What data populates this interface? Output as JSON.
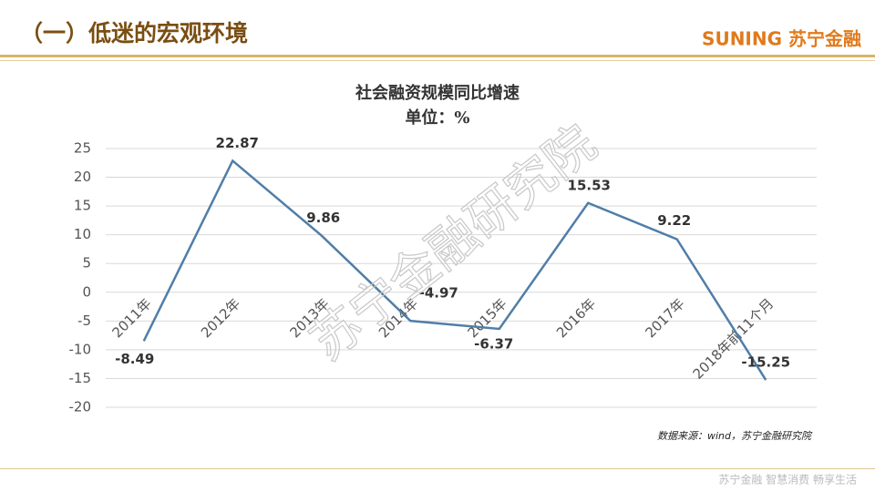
{
  "header": {
    "title": "（一）低迷的宏观环境",
    "logo": "SUNING 苏宁金融"
  },
  "chart_data": {
    "type": "line",
    "title": "社会融资规模同比增速",
    "subtitle": "单位：%",
    "categories": [
      "2011年",
      "2012年",
      "2013年",
      "2014年",
      "2015年",
      "2016年",
      "2017年",
      "2018年前11个月"
    ],
    "series": [
      {
        "name": "社会融资规模同比增速",
        "color": "#4f7ea8",
        "values": [
          -8.49,
          22.87,
          9.86,
          -4.97,
          -6.37,
          15.53,
          9.22,
          -15.25
        ]
      }
    ],
    "ylim": [
      -20,
      25
    ],
    "yticks": [
      -20,
      -15,
      -10,
      -5,
      0,
      5,
      10,
      15,
      20,
      25
    ],
    "grid": true
  },
  "source": "数据来源：wind，苏宁金融研究院",
  "watermark": "苏宁金融研究院",
  "footer": "苏宁金融 智慧消费 畅享生活"
}
